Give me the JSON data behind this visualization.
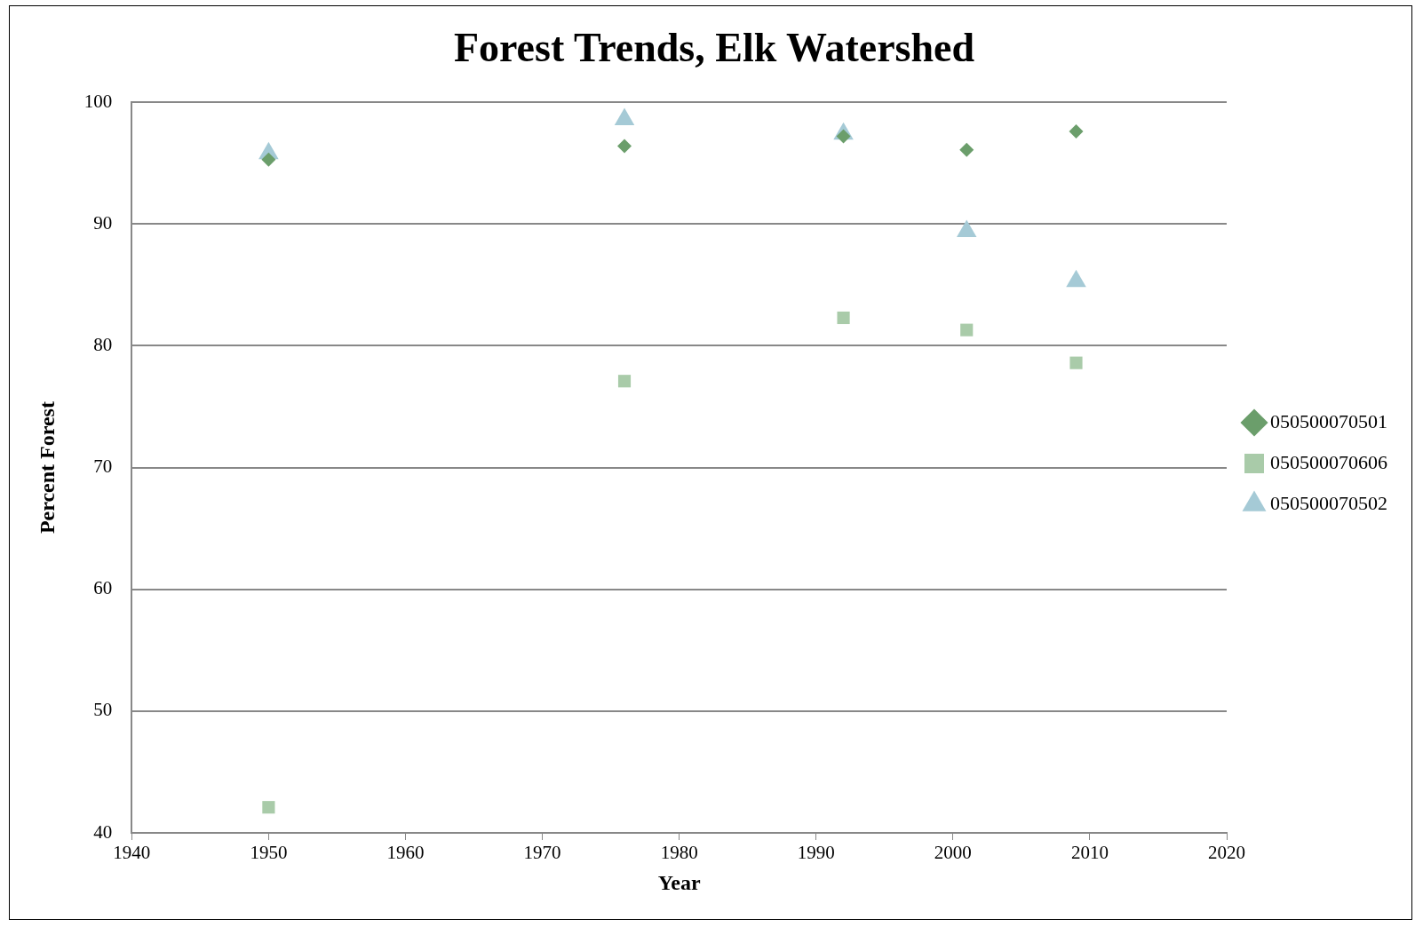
{
  "chart_data": {
    "type": "scatter",
    "title": "Forest Trends, Elk Watershed",
    "xlabel": "Year",
    "ylabel": "Percent Forest",
    "x": [
      1950,
      1976,
      1992,
      2001,
      2009
    ],
    "series": [
      {
        "name": "050500070501",
        "color": "#6b9e6b",
        "marker": "diamond",
        "values": [
          95.3,
          96.4,
          97.2,
          96.1,
          97.6
        ]
      },
      {
        "name": "050500070606",
        "color": "#a9cba9",
        "marker": "square",
        "values": [
          42.1,
          77.1,
          82.3,
          81.3,
          78.6
        ]
      },
      {
        "name": "050500070502",
        "color": "#a5cad6",
        "marker": "triangle",
        "values": [
          95.8,
          98.6,
          97.4,
          89.4,
          85.3
        ]
      }
    ],
    "xlim": [
      1940,
      2020
    ],
    "xticks": [
      1940,
      1950,
      1960,
      1970,
      1980,
      1990,
      2000,
      2010,
      2020
    ],
    "ylim": [
      40,
      100
    ],
    "yticks": [
      40,
      50,
      60,
      70,
      80,
      90,
      100
    ],
    "grid": "y",
    "legend": "right"
  }
}
